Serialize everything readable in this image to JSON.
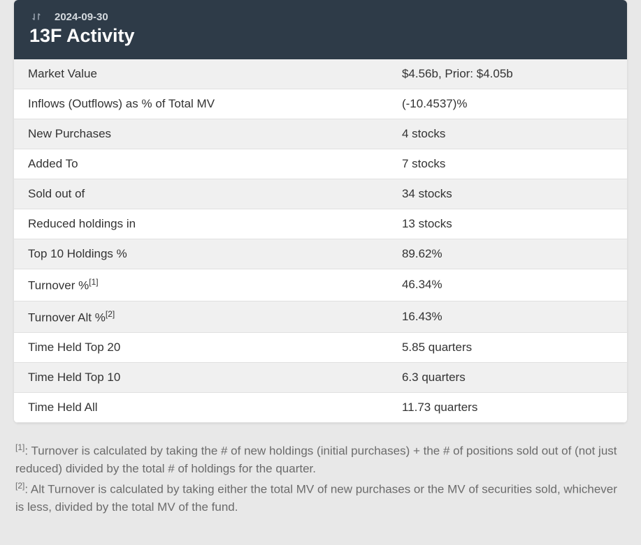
{
  "header": {
    "date": "2024-09-30",
    "title": "13F Activity",
    "bg_color": "#2e3b48",
    "title_color": "#ffffff",
    "date_color": "#d4d9de"
  },
  "table": {
    "stripe_odd_bg": "#f0f0f0",
    "stripe_even_bg": "#ffffff",
    "border_color": "#e0e0e0",
    "text_color": "#333333",
    "negative_color": "#d83030",
    "rows": [
      {
        "label": "Market Value",
        "value": "$4.56b, Prior: $4.05b",
        "negative": false,
        "sup": null
      },
      {
        "label": "Inflows (Outflows) as % of Total MV",
        "value": "(-10.4537)%",
        "negative": true,
        "sup": null
      },
      {
        "label": "New Purchases",
        "value": "4 stocks",
        "negative": false,
        "sup": null
      },
      {
        "label": "Added To",
        "value": "7 stocks",
        "negative": false,
        "sup": null
      },
      {
        "label": "Sold out of",
        "value": "34 stocks",
        "negative": false,
        "sup": null
      },
      {
        "label": "Reduced holdings in",
        "value": "13 stocks",
        "negative": false,
        "sup": null
      },
      {
        "label": "Top 10 Holdings %",
        "value": "89.62%",
        "negative": false,
        "sup": null
      },
      {
        "label": "Turnover %",
        "value": "46.34%",
        "negative": false,
        "sup": "[1]"
      },
      {
        "label": "Turnover Alt %",
        "value": "16.43%",
        "negative": false,
        "sup": "[2]"
      },
      {
        "label": "Time Held Top 20",
        "value": "5.85 quarters",
        "negative": false,
        "sup": null
      },
      {
        "label": "Time Held Top 10",
        "value": "6.3 quarters",
        "negative": false,
        "sup": null
      },
      {
        "label": "Time Held All",
        "value": "11.73 quarters",
        "negative": false,
        "sup": null
      }
    ]
  },
  "footnotes": [
    {
      "num": "[1]",
      "text": ": Turnover is calculated by taking the # of new holdings (initial purchases) + the # of positions sold out of (not just reduced) divided by the total # of holdings for the quarter."
    },
    {
      "num": "[2]",
      "text": ": Alt Turnover is calculated by taking either the total MV of new purchases or the MV of securities sold, whichever is less, divided by the total MV of the fund."
    }
  ]
}
